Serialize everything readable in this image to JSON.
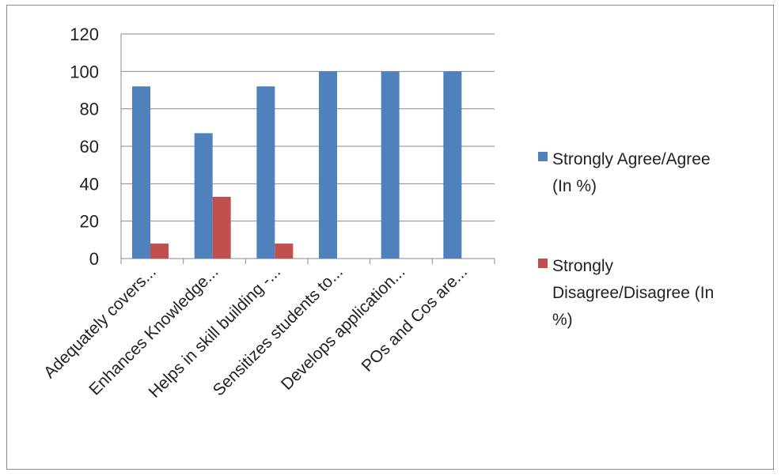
{
  "chart_data": {
    "type": "bar",
    "title": "",
    "xlabel": "",
    "ylabel": "",
    "ylim": [
      0,
      120
    ],
    "y_ticks": [
      0,
      20,
      40,
      60,
      80,
      100,
      120
    ],
    "grid": true,
    "legend_position": "right",
    "categories": [
      "Adequately covers...",
      "Enhances Knowledge...",
      "Helps in skill building -...",
      "Sensitizes students to...",
      "Develops application...",
      "POs and Cos are..."
    ],
    "series": [
      {
        "name": "Strongly Agree/Agree (In %)",
        "legend_lines": [
          "Strongly Agree/Agree",
          "(In %)"
        ],
        "color": "#4f81bd",
        "values": [
          92,
          67,
          92,
          100,
          100,
          100
        ]
      },
      {
        "name": "Strongly Disagree/Disagree (In %)",
        "legend_lines": [
          "Strongly",
          "Disagree/Disagree (In",
          "%)"
        ],
        "color": "#c0504d",
        "values": [
          8,
          33,
          8,
          null,
          null,
          null
        ]
      }
    ]
  }
}
